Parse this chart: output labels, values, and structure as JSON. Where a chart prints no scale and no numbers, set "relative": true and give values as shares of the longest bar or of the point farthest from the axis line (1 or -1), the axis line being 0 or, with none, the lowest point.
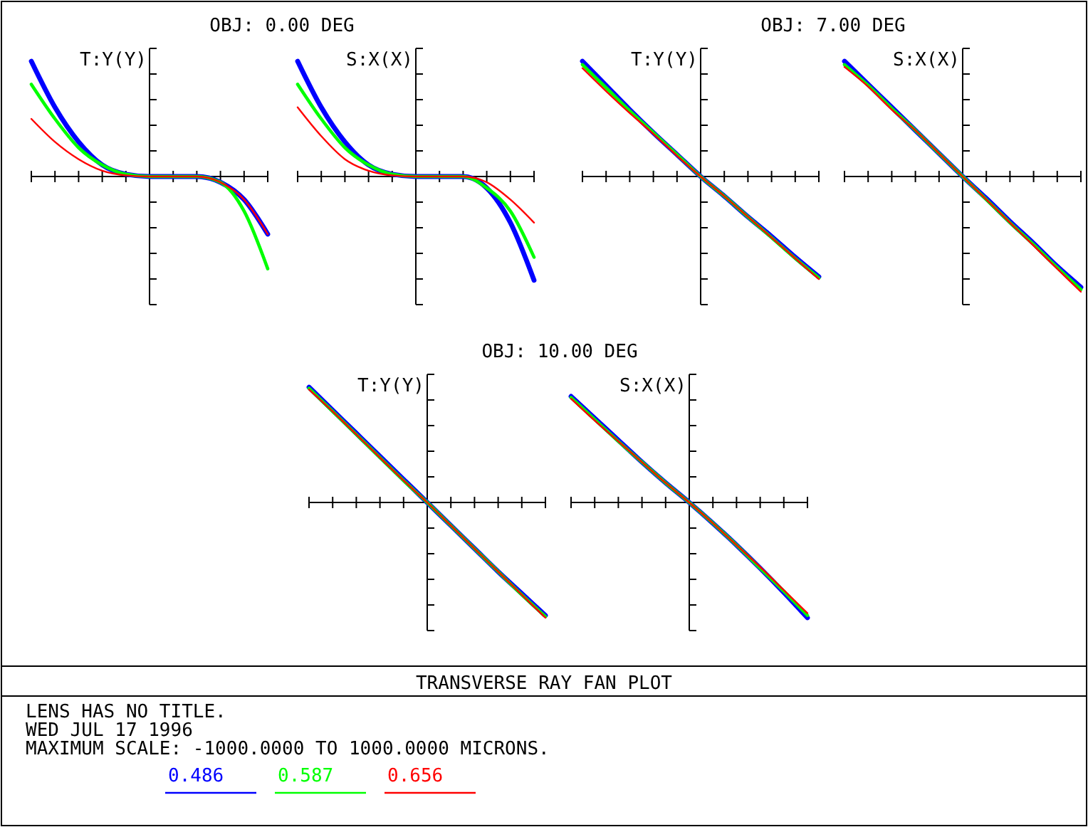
{
  "chart_data": [
    {
      "type": "line",
      "title": "T:Y(Y)",
      "subtitle": "OBJ: 0.00 DEG",
      "relative": true,
      "legend": "bottom",
      "annotations": [
        "TRANSVERSE RAY FAN PLOT",
        "LENS HAS NO TITLE.",
        "WED JUL 17 1996",
        "MAXIMUM SCALE: -1000.0000 TO 1000.0000 MICRONS."
      ],
      "categories": [
        null,
        null,
        null,
        null,
        null,
        null,
        null,
        null,
        null,
        null,
        null
      ],
      "series": [
        {
          "name": "0.486",
          "color": "#0000ff",
          "values": [
            1,
            0.6,
            0.3,
            0.1,
            0.02,
            0,
            0,
            0,
            -0.05,
            -0.2,
            -0.5
          ]
        },
        {
          "name": "0.587",
          "color": "#00ff00",
          "values": [
            0.8,
            0.5,
            0.25,
            0.1,
            0.02,
            0,
            0,
            0,
            -0.05,
            -0.3,
            -0.8
          ]
        },
        {
          "name": "0.656",
          "color": "#ff0000",
          "values": [
            0.5,
            0.3,
            0.15,
            0.05,
            0.01,
            0,
            0,
            0,
            -0.05,
            -0.2,
            -0.5
          ]
        }
      ]
    },
    {
      "type": "line",
      "title": "S:X(X)",
      "relative": true,
      "categories": [
        null,
        null,
        null,
        null,
        null,
        null,
        null,
        null,
        null,
        null,
        null
      ],
      "series": [
        {
          "color": "#0000ff",
          "values": [
            1,
            0.6,
            0.3,
            0.1,
            0.02,
            0,
            0,
            0,
            -0.1,
            -0.4,
            -0.9
          ]
        },
        {
          "color": "#00ff00",
          "values": [
            0.8,
            0.5,
            0.25,
            0.1,
            0.02,
            0,
            0,
            0,
            -0.1,
            -0.3,
            -0.7
          ]
        },
        {
          "color": "#ff0000",
          "values": [
            0.6,
            0.35,
            0.15,
            0.05,
            0.01,
            0,
            0,
            0,
            -0.05,
            -0.2,
            -0.4
          ]
        }
      ]
    },
    {
      "type": "line",
      "title": "T:Y(Y)",
      "subtitle": "OBJ: 7.00 DEG",
      "relative": true,
      "categories": [
        null,
        null,
        null,
        null,
        null,
        null,
        null,
        null,
        null,
        null,
        null
      ],
      "series": [
        {
          "color": "#0000ff",
          "values": [
            1,
            0.79,
            0.58,
            0.38,
            0.19,
            0,
            -0.17,
            -0.35,
            -0.52,
            -0.7,
            -0.87
          ]
        },
        {
          "color": "#00ff00",
          "values": [
            0.97,
            0.77,
            0.57,
            0.38,
            0.19,
            0,
            -0.17,
            -0.35,
            -0.53,
            -0.71,
            -0.88
          ]
        },
        {
          "color": "#ff0000",
          "values": [
            0.94,
            0.74,
            0.55,
            0.37,
            0.18,
            0,
            -0.17,
            -0.35,
            -0.53,
            -0.71,
            -0.89
          ]
        }
      ]
    },
    {
      "type": "line",
      "title": "S:X(X)",
      "relative": true,
      "categories": [
        null,
        null,
        null,
        null,
        null,
        null,
        null,
        null,
        null,
        null,
        null
      ],
      "series": [
        {
          "color": "#0000ff",
          "values": [
            1,
            0.8,
            0.6,
            0.4,
            0.2,
            0,
            -0.19,
            -0.39,
            -0.58,
            -0.78,
            -0.96
          ]
        },
        {
          "color": "#00ff00",
          "values": [
            0.97,
            0.79,
            0.59,
            0.4,
            0.2,
            0,
            -0.2,
            -0.4,
            -0.59,
            -0.79,
            -0.98
          ]
        },
        {
          "color": "#ff0000",
          "values": [
            0.95,
            0.78,
            0.58,
            0.4,
            0.2,
            0,
            -0.2,
            -0.4,
            -0.6,
            -0.8,
            -1
          ]
        }
      ]
    },
    {
      "type": "line",
      "title": "T:Y(Y)",
      "subtitle": "OBJ: 10.00 DEG",
      "relative": true,
      "categories": [
        null,
        null,
        null,
        null,
        null,
        null,
        null,
        null,
        null,
        null,
        null
      ],
      "series": [
        {
          "color": "#0000ff",
          "values": [
            1,
            0.8,
            0.6,
            0.4,
            0.2,
            0,
            -0.2,
            -0.4,
            -0.6,
            -0.79,
            -0.98
          ]
        },
        {
          "color": "#00ff00",
          "values": [
            0.99,
            0.79,
            0.59,
            0.39,
            0.19,
            0,
            -0.2,
            -0.4,
            -0.6,
            -0.8,
            -0.99
          ]
        },
        {
          "color": "#ff0000",
          "values": [
            0.98,
            0.79,
            0.59,
            0.39,
            0.19,
            0,
            -0.2,
            -0.4,
            -0.6,
            -0.8,
            -1
          ]
        }
      ]
    },
    {
      "type": "line",
      "title": "S:X(X)",
      "relative": true,
      "categories": [
        null,
        null,
        null,
        null,
        null,
        null,
        null,
        null,
        null,
        null,
        null
      ],
      "series": [
        {
          "color": "#0000ff",
          "values": [
            0.92,
            0.73,
            0.54,
            0.35,
            0.17,
            0,
            -0.18,
            -0.37,
            -0.57,
            -0.78,
            -1
          ]
        },
        {
          "color": "#00ff00",
          "values": [
            0.91,
            0.72,
            0.53,
            0.35,
            0.17,
            0,
            -0.18,
            -0.37,
            -0.57,
            -0.77,
            -0.98
          ]
        },
        {
          "color": "#ff0000",
          "values": [
            0.9,
            0.71,
            0.53,
            0.35,
            0.17,
            0,
            -0.18,
            -0.37,
            -0.56,
            -0.76,
            -0.96
          ]
        }
      ]
    }
  ]
}
